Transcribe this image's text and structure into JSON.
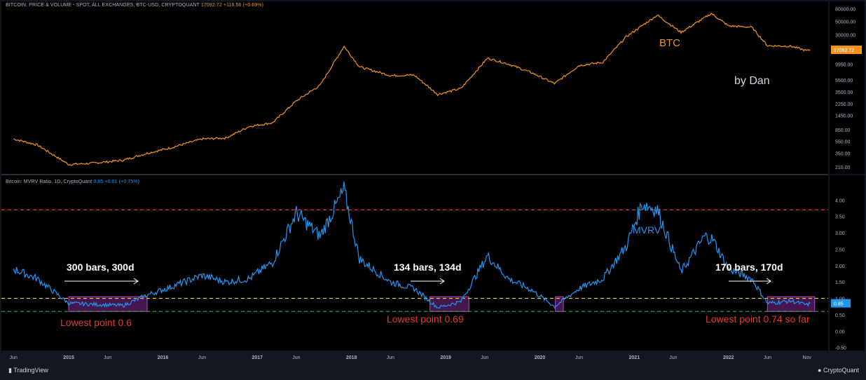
{
  "price_header": {
    "title": "BITCOIN: PRICE & VOLUME - SPOT, ALL EXCHANGES, BTC-USD, CRYPTOQUANT",
    "last": "17092.72",
    "change": "+116.56 (+0.69%)"
  },
  "mvrv_header": {
    "title": "Bitcoin: MVRV Ratio, 1D, CryptoQuant",
    "last": "0.85",
    "change": "+0.01 (+0.75%)"
  },
  "annotations": {
    "btc_label": "BTC",
    "author": "by Dan",
    "mvrv_label": "MVRV",
    "bars_1": "300 bars, 300d",
    "bars_2": "134 bars, 134d",
    "bars_3": "170 bars, 170d",
    "low_1": "Lowest point 0.6",
    "low_2": "Lowest point 0.69",
    "low_3": "Lowest point 0.74 so far"
  },
  "footer": {
    "tradingview": "TradingView",
    "cryptoquant": "CryptoQuant"
  },
  "colors": {
    "btc": "#f7931a",
    "mvrv": "#2196f3",
    "red_line": "#e53935",
    "yellow_line": "#f5d90a",
    "green_line": "#2e9e3a",
    "zone": "#7b2a8e",
    "annotation_red": "#e53935"
  },
  "chart_data": [
    {
      "type": "line",
      "series": [
        {
          "name": "BTC",
          "x": [
            "2014-06",
            "2014-09",
            "2015-01",
            "2015-04",
            "2015-08",
            "2015-11",
            "2016-02",
            "2016-06",
            "2016-09",
            "2016-12",
            "2017-03",
            "2017-06",
            "2017-09",
            "2017-12-17",
            "2018-02",
            "2018-06",
            "2018-09",
            "2018-12-15",
            "2019-03",
            "2019-06-26",
            "2019-09",
            "2019-12",
            "2020-03-12",
            "2020-06",
            "2020-09",
            "2020-12",
            "2021-04-14",
            "2021-07",
            "2021-11-10",
            "2022-01",
            "2022-04",
            "2022-06",
            "2022-09",
            "2022-11",
            "2022-11-28"
          ],
          "values": [
            600,
            480,
            230,
            240,
            270,
            350,
            430,
            600,
            620,
            960,
            1100,
            2500,
            4500,
            19500,
            9000,
            6500,
            6600,
            3200,
            4000,
            12500,
            10000,
            7200,
            4800,
            9500,
            10700,
            28000,
            63000,
            33000,
            67000,
            42000,
            40000,
            20000,
            19500,
            16500,
            17092.72
          ]
        }
      ],
      "ylim": [
        170,
        90000
      ],
      "yscale": "log",
      "yticks": [
        "80000.00",
        "50000.00",
        "30000.00",
        "17092.72",
        "9950.00",
        "5500.00",
        "3500.00",
        "2250.00",
        "1450.00",
        "850.00",
        "550.00",
        "350.00",
        "210.00"
      ]
    },
    {
      "type": "line",
      "series": [
        {
          "name": "MVRV",
          "x": [
            "2014-06",
            "2014-09",
            "2015-01",
            "2015-04",
            "2015-08",
            "2015-11",
            "2016-02",
            "2016-06",
            "2016-09",
            "2016-12",
            "2017-03",
            "2017-06",
            "2017-09",
            "2017-12-17",
            "2018-02",
            "2018-06",
            "2018-09",
            "2018-12-15",
            "2019-03",
            "2019-06-26",
            "2019-09",
            "2019-12",
            "2020-03-12",
            "2020-06",
            "2020-09",
            "2020-12",
            "2021-02",
            "2021-04",
            "2021-07",
            "2021-10",
            "2021-11",
            "2022-01",
            "2022-04",
            "2022-06",
            "2022-09",
            "2022-11",
            "2022-11-28"
          ],
          "values": [
            1.9,
            1.6,
            0.85,
            0.82,
            0.78,
            1.1,
            1.35,
            1.7,
            1.5,
            1.6,
            2.1,
            3.6,
            2.9,
            4.3,
            2.2,
            1.5,
            1.3,
            0.72,
            0.9,
            2.3,
            1.6,
            1.25,
            0.75,
            1.3,
            1.6,
            2.6,
            3.9,
            3.7,
            1.8,
            2.9,
            2.8,
            1.9,
            1.6,
            0.85,
            0.92,
            0.8,
            0.85
          ]
        }
      ],
      "ylim": [
        -0.55,
        4.5
      ],
      "yticks": [
        "4.00",
        "3.50",
        "3.00",
        "2.50",
        "2.00",
        "1.50",
        "1.00",
        "0.85",
        "0.50",
        "0.00",
        "-0.50"
      ],
      "reference_lines": [
        3.7,
        1.0,
        0.6
      ]
    }
  ],
  "x_axis": {
    "labels": [
      "Jun",
      "2015",
      "Jun",
      "2016",
      "Jun",
      "2017",
      "Jun",
      "2018",
      "Jun",
      "2019",
      "Jun",
      "2020",
      "Jun",
      "2021",
      "Jun",
      "2022",
      "Jun",
      "Nov"
    ],
    "dates": [
      "2014-06",
      "2015-01",
      "2015-06",
      "2016-01",
      "2016-06",
      "2017-01",
      "2017-06",
      "2018-01",
      "2018-06",
      "2019-01",
      "2019-06",
      "2020-01",
      "2020-06",
      "2021-01",
      "2021-06",
      "2022-01",
      "2022-06",
      "2022-11"
    ]
  },
  "zones": [
    {
      "start": "2015-01",
      "end": "2015-11"
    },
    {
      "start": "2018-11",
      "end": "2019-04"
    },
    {
      "start": "2020-03",
      "end": "2020-04"
    },
    {
      "start": "2022-06",
      "end": "2022-12"
    }
  ]
}
